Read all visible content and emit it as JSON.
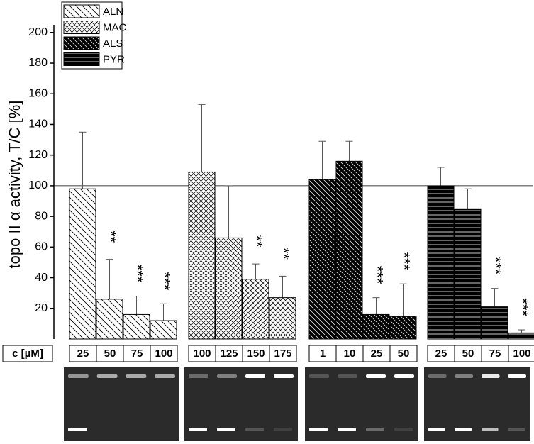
{
  "chart_data": {
    "type": "bar",
    "ylabel": "topo II α activity, T/C [%]",
    "ylim": [
      0,
      205
    ],
    "yticks": [
      20,
      40,
      60,
      80,
      100,
      120,
      140,
      160,
      180,
      200
    ],
    "reference_line": 100,
    "concentration_label": "c [µM]",
    "series": [
      {
        "name": "ALN",
        "pattern": "diag",
        "color": "#000000",
        "categories": [
          "25",
          "50",
          "75",
          "100"
        ],
        "values": [
          98,
          26,
          16,
          12
        ],
        "errors": [
          37,
          26,
          12,
          11
        ],
        "annotations": [
          null,
          "**",
          "***",
          "***"
        ]
      },
      {
        "name": "MAC",
        "pattern": "cross",
        "color": "#000000",
        "categories": [
          "100",
          "125",
          "150",
          "175"
        ],
        "values": [
          109,
          66,
          39,
          27
        ],
        "errors": [
          44,
          34,
          10,
          14
        ],
        "annotations": [
          null,
          null,
          "**",
          "**"
        ]
      },
      {
        "name": "ALS",
        "pattern": "diagdark",
        "color": "#000000",
        "categories": [
          "1",
          "10",
          "25",
          "50"
        ],
        "values": [
          104,
          116,
          16,
          15
        ],
        "errors": [
          25,
          13,
          11,
          21
        ],
        "annotations": [
          null,
          null,
          "***",
          "***"
        ]
      },
      {
        "name": "PYR",
        "pattern": "hstripe",
        "color": "#000000",
        "categories": [
          "25",
          "50",
          "75",
          "100"
        ],
        "values": [
          100,
          85,
          21,
          4
        ],
        "errors": [
          12,
          13,
          12,
          2
        ],
        "annotations": [
          null,
          null,
          "***",
          "***"
        ]
      }
    ]
  }
}
